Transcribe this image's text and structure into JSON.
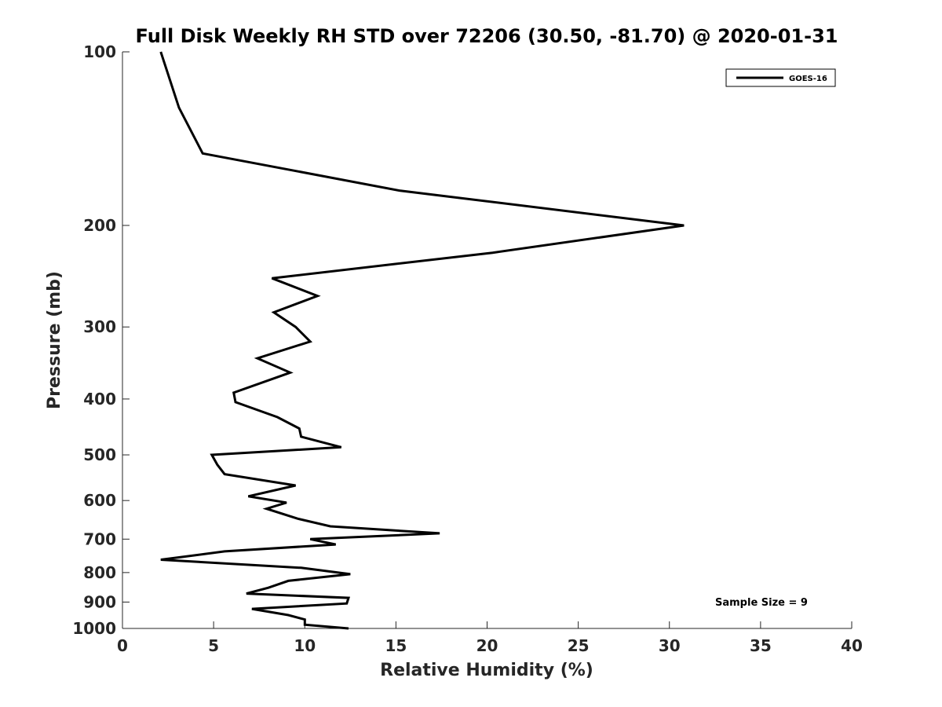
{
  "chart_data": {
    "type": "line",
    "title": "Full Disk Weekly RH STD over 72206 (30.50, -81.70) @ 2020-01-31",
    "xlabel": "Relative Humidity (%)",
    "ylabel": "Pressure (mb)",
    "xlim": [
      0,
      40
    ],
    "ylim": [
      100,
      1000
    ],
    "y_scale": "log",
    "y_reversed": true,
    "grid": false,
    "x_ticks": [
      0,
      5,
      10,
      15,
      20,
      25,
      30,
      35,
      40
    ],
    "x_tick_labels": [
      "0",
      "5",
      "10",
      "15",
      "20",
      "25",
      "30",
      "35",
      "40"
    ],
    "y_ticks": [
      100,
      200,
      300,
      400,
      500,
      600,
      700,
      800,
      900,
      1000
    ],
    "y_tick_labels": [
      "100",
      "200",
      "300",
      "400",
      "500",
      "600",
      "700",
      "800",
      "900",
      "1000"
    ],
    "legend": {
      "position": "top-right",
      "entries": [
        "GOES-16"
      ]
    },
    "annotation": "Sample Size = 9",
    "series": [
      {
        "name": "GOES-16",
        "color": "#000000",
        "points": [
          [
            2.1,
            100
          ],
          [
            3.1,
            125
          ],
          [
            4.4,
            150
          ],
          [
            15.2,
            174
          ],
          [
            30.8,
            200
          ],
          [
            20.3,
            223
          ],
          [
            8.2,
            247
          ],
          [
            10.7,
            265
          ],
          [
            8.3,
            283
          ],
          [
            9.5,
            300
          ],
          [
            10.3,
            318
          ],
          [
            7.4,
            340
          ],
          [
            9.2,
            360
          ],
          [
            6.1,
            390
          ],
          [
            6.2,
            405
          ],
          [
            8.5,
            430
          ],
          [
            9.7,
            450
          ],
          [
            9.8,
            465
          ],
          [
            12.0,
            485
          ],
          [
            4.9,
            500
          ],
          [
            5.2,
            520
          ],
          [
            5.6,
            540
          ],
          [
            9.5,
            565
          ],
          [
            6.9,
            590
          ],
          [
            9.0,
            605
          ],
          [
            7.9,
            620
          ],
          [
            9.6,
            645
          ],
          [
            11.4,
            665
          ],
          [
            17.4,
            684
          ],
          [
            10.3,
            700
          ],
          [
            11.7,
            715
          ],
          [
            5.6,
            735
          ],
          [
            2.1,
            760
          ],
          [
            9.8,
            785
          ],
          [
            12.5,
            805
          ],
          [
            9.1,
            827
          ],
          [
            8.0,
            850
          ],
          [
            6.8,
            870
          ],
          [
            12.4,
            885
          ],
          [
            12.3,
            905
          ],
          [
            7.1,
            925
          ],
          [
            9.1,
            948
          ],
          [
            10.0,
            965
          ],
          [
            10.0,
            985
          ],
          [
            12.4,
            1000
          ]
        ]
      }
    ]
  }
}
